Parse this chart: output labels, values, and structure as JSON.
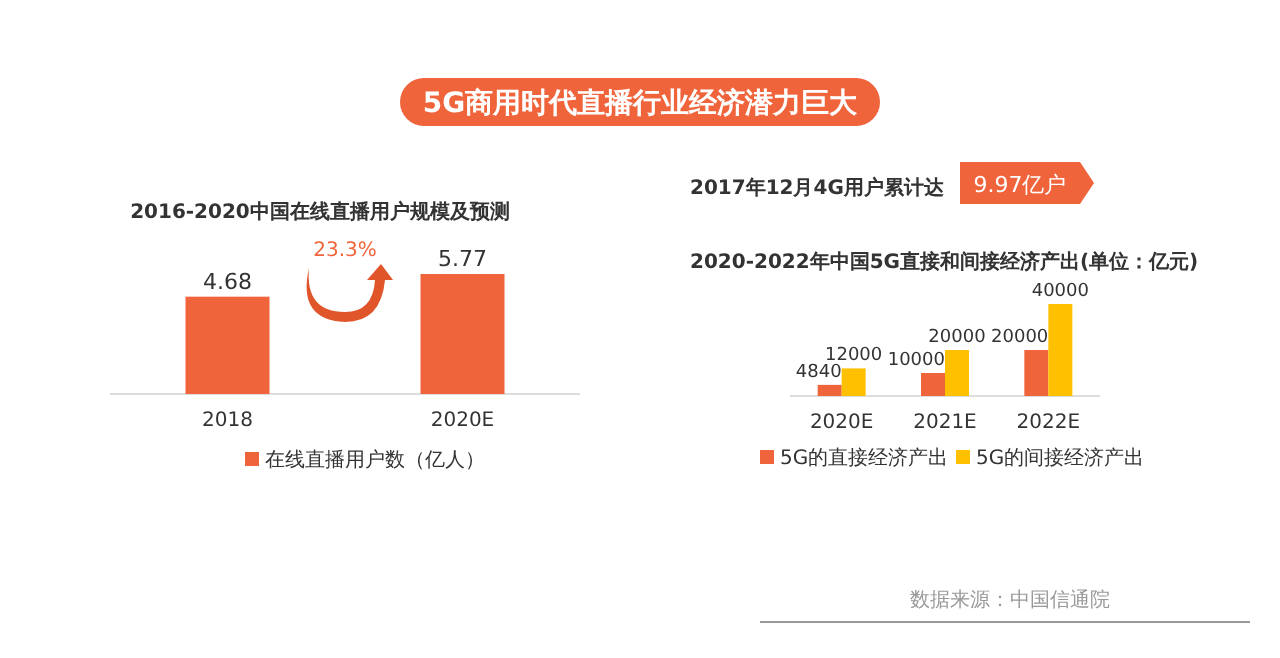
{
  "chart_data": [
    {
      "type": "other",
      "title": "5G商用时代直播行业经济潜力巨大",
      "annotations": [
        "数据来源：中国信通院"
      ]
    },
    {
      "type": "bar",
      "title": "2016-2020中国在线直播用户规模及预测",
      "categories": [
        "2018",
        "2020E"
      ],
      "series": [
        {
          "name": "在线直播用户数（亿人）",
          "color": "#f0643c",
          "values": [
            4.68,
            5.77
          ]
        }
      ],
      "data_labels": true,
      "legend": "bottom",
      "annotations": [
        "23.3%"
      ]
    },
    {
      "type": "other",
      "annotations": [
        "2017年12月4G用户累计达",
        "9.97亿户"
      ]
    },
    {
      "type": "bar",
      "title": "2020-2022年中国5G直接和间接经济产出(单位：亿元)",
      "categories": [
        "2020E",
        "2021E",
        "2022E"
      ],
      "series": [
        {
          "name": "5G的直接经济产出",
          "color": "#f0643c",
          "values": [
            4840,
            10000,
            20000
          ]
        },
        {
          "name": "5G的间接经济产出",
          "color": "#ffc000",
          "values": [
            12000,
            20000,
            40000
          ]
        }
      ],
      "data_labels": true,
      "legend": "bottom"
    }
  ]
}
